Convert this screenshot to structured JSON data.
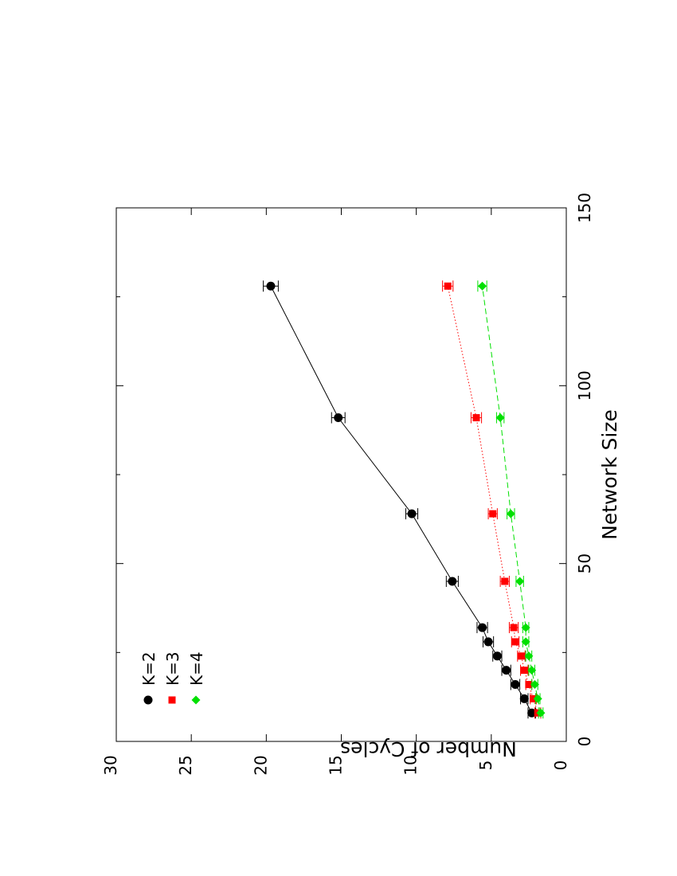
{
  "chart_data": {
    "type": "line",
    "orientation": "rotated-90-clockwise",
    "xlabel": "Network Size",
    "ylabel": "Number of Cycles",
    "xlim": [
      0,
      150
    ],
    "ylim": [
      0,
      30
    ],
    "xticks": [
      0,
      50,
      100,
      150
    ],
    "yticks": [
      0,
      5,
      10,
      15,
      20,
      25,
      30
    ],
    "grid": false,
    "legend_position": "top-left",
    "series": [
      {
        "name": "K=2",
        "color": "#000000",
        "marker": "circle",
        "line_style": "solid",
        "x": [
          8,
          12,
          16,
          20,
          24,
          28,
          32,
          45,
          64,
          91,
          128
        ],
        "y": [
          2.3,
          2.8,
          3.4,
          4.0,
          4.6,
          5.2,
          5.6,
          7.6,
          10.3,
          15.2,
          19.7
        ],
        "err": [
          0.25,
          0.25,
          0.3,
          0.3,
          0.3,
          0.35,
          0.35,
          0.4,
          0.4,
          0.45,
          0.5
        ]
      },
      {
        "name": "K=3",
        "color": "#ff0000",
        "marker": "square",
        "line_style": "dotted",
        "x": [
          8,
          12,
          16,
          20,
          24,
          28,
          32,
          45,
          64,
          91,
          128
        ],
        "y": [
          1.9,
          2.2,
          2.5,
          2.8,
          3.0,
          3.4,
          3.5,
          4.1,
          4.9,
          6.0,
          7.9
        ],
        "err": [
          0.2,
          0.2,
          0.2,
          0.25,
          0.25,
          0.25,
          0.3,
          0.3,
          0.3,
          0.35,
          0.35
        ]
      },
      {
        "name": "K=4",
        "color": "#00e000",
        "marker": "diamond",
        "line_style": "dashed",
        "x": [
          8,
          12,
          16,
          20,
          24,
          28,
          32,
          45,
          64,
          91,
          128
        ],
        "y": [
          1.7,
          1.9,
          2.1,
          2.3,
          2.5,
          2.7,
          2.7,
          3.1,
          3.7,
          4.4,
          5.6
        ],
        "err": [
          0.15,
          0.15,
          0.2,
          0.2,
          0.2,
          0.2,
          0.2,
          0.25,
          0.25,
          0.25,
          0.3
        ]
      }
    ]
  }
}
